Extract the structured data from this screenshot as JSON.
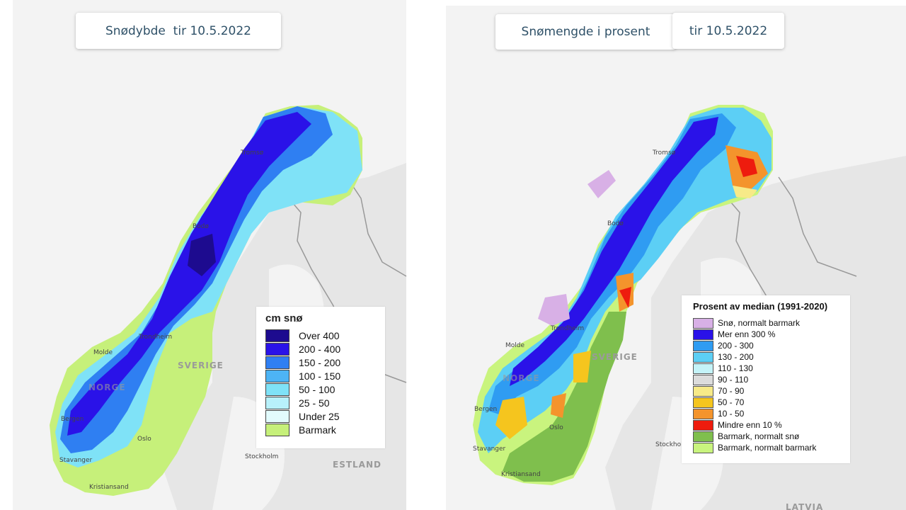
{
  "left_panel": {
    "title": "Snødybde  tir 10.5.2022",
    "legend": {
      "title": "cm snø",
      "items": [
        {
          "label": "Over 400",
          "color": "#1d0b8f"
        },
        {
          "label": "200 - 400",
          "color": "#2a12e8"
        },
        {
          "label": "150 - 200",
          "color": "#2f7ff2"
        },
        {
          "label": "100 - 150",
          "color": "#4db4f5"
        },
        {
          "label": "50 - 100",
          "color": "#7fe2f7"
        },
        {
          "label": "25 - 50",
          "color": "#b8f1fb"
        },
        {
          "label": "Under 25",
          "color": "#e2fbfd"
        },
        {
          "label": "Barmark",
          "color": "#c6f07a"
        }
      ]
    },
    "places": {
      "tromso": "Tromsø",
      "bodo": "Bodø",
      "trondheim": "Trondheim",
      "molde": "Molde",
      "bergen": "Bergen",
      "stavanger": "Stavanger",
      "kristiansand": "Kristiansand",
      "oslo": "Oslo",
      "stockholm": "Stockholm",
      "sverige": "SVERIGE",
      "norge": "NORGE",
      "estland": "ESTLAND"
    }
  },
  "right_panel": {
    "title_part1": "Snømengde i prosent",
    "title_part2": "tir 10.5.2022",
    "legend": {
      "title": "Prosent av median (1991-2020)",
      "items": [
        {
          "label": "Snø, normalt barmark",
          "color": "#d8b0e6"
        },
        {
          "label": "Mer enn 300 %",
          "color": "#2a12e8"
        },
        {
          "label": "200 - 300",
          "color": "#2f9cf2"
        },
        {
          "label": "130 - 200",
          "color": "#5ccff5"
        },
        {
          "label": "110 - 130",
          "color": "#c4f3f8"
        },
        {
          "label": "90 - 110",
          "color": "#dcdcdc"
        },
        {
          "label": "70 - 90",
          "color": "#f7ea88"
        },
        {
          "label": "50 - 70",
          "color": "#f5c51e"
        },
        {
          "label": "10 - 50",
          "color": "#f4942c"
        },
        {
          "label": "Mindre enn 10 %",
          "color": "#ee1c0e"
        },
        {
          "label": "Barmark, normalt snø",
          "color": "#7fbf4d"
        },
        {
          "label": "Barmark, normalt barmark",
          "color": "#c9f47e"
        }
      ]
    },
    "places": {
      "tromso": "Tromsø",
      "bodo": "Bodø",
      "trondheim": "Trondheim",
      "molde": "Molde",
      "bergen": "Bergen",
      "stavanger": "Stavanger",
      "kristiansand": "Kristiansand",
      "oslo": "Oslo",
      "stockholm": "Stockholm",
      "sverige": "SVERIGE",
      "norge": "NORGE",
      "latvia": "LATVIA"
    }
  }
}
